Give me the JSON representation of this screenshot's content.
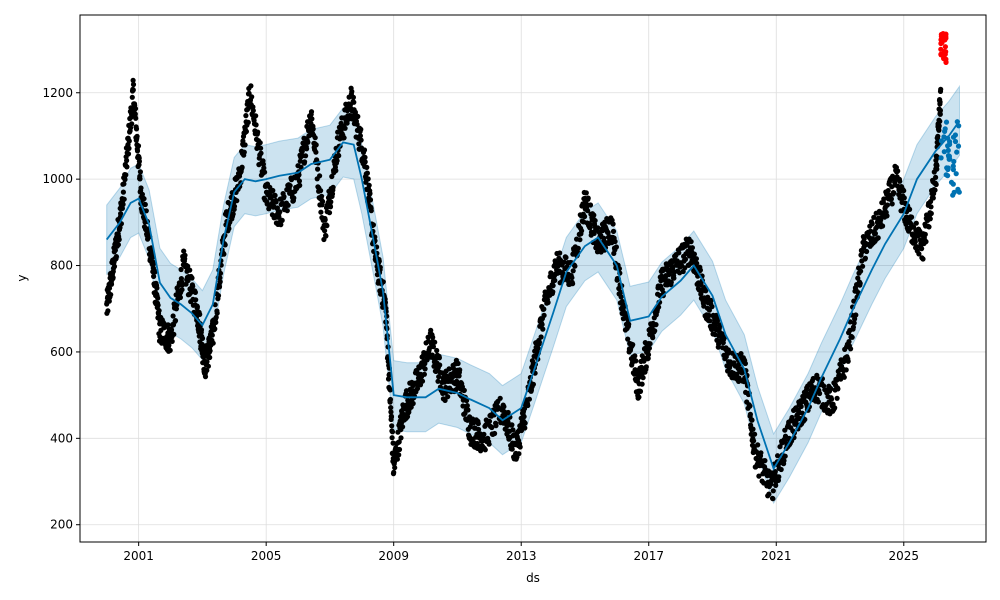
{
  "chart_data": {
    "type": "line",
    "title": "",
    "xlabel": "ds",
    "ylabel": "y",
    "x_ticks": [
      "2001",
      "2005",
      "2009",
      "2013",
      "2017",
      "2021",
      "2025"
    ],
    "y_ticks": [
      200,
      400,
      600,
      800,
      1000,
      1200
    ],
    "xlim": [
      "1999-03-01",
      "2027-08-01"
    ],
    "ylim": [
      160,
      1380
    ],
    "grid": true,
    "legend": "none",
    "colors": {
      "observed": "#000000",
      "forecast": "#0072B2",
      "interval": "#0072B2",
      "holdout": "#ff0000"
    },
    "series": [
      {
        "role": "forecast_yhat",
        "points": [
          [
            "2000-01-01",
            860
          ],
          [
            "2000-06-01",
            900
          ],
          [
            "2000-10-01",
            945
          ],
          [
            "2001-01-01",
            955
          ],
          [
            "2001-05-01",
            895
          ],
          [
            "2001-09-01",
            760
          ],
          [
            "2002-01-01",
            725
          ],
          [
            "2002-05-01",
            710
          ],
          [
            "2002-09-01",
            690
          ],
          [
            "2003-01-01",
            662
          ],
          [
            "2003-05-01",
            710
          ],
          [
            "2003-09-01",
            860
          ],
          [
            "2004-01-01",
            970
          ],
          [
            "2004-05-01",
            1000
          ],
          [
            "2004-09-01",
            995
          ],
          [
            "2005-01-01",
            1000
          ],
          [
            "2005-06-01",
            1008
          ],
          [
            "2006-01-01",
            1015
          ],
          [
            "2006-06-01",
            1035
          ],
          [
            "2007-01-01",
            1045
          ],
          [
            "2007-06-01",
            1085
          ],
          [
            "2007-10-01",
            1080
          ],
          [
            "2008-01-01",
            1000
          ],
          [
            "2008-06-01",
            840
          ],
          [
            "2008-09-01",
            740
          ],
          [
            "2009-01-01",
            500
          ],
          [
            "2009-06-01",
            495
          ],
          [
            "2010-01-01",
            495
          ],
          [
            "2010-06-01",
            515
          ],
          [
            "2011-01-01",
            505
          ],
          [
            "2011-06-01",
            490
          ],
          [
            "2012-01-01",
            470
          ],
          [
            "2012-06-01",
            442
          ],
          [
            "2013-01-01",
            470
          ],
          [
            "2013-06-01",
            560
          ],
          [
            "2014-01-01",
            690
          ],
          [
            "2014-06-01",
            785
          ],
          [
            "2015-01-01",
            845
          ],
          [
            "2015-06-01",
            865
          ],
          [
            "2016-01-01",
            800
          ],
          [
            "2016-06-01",
            672
          ],
          [
            "2017-01-01",
            682
          ],
          [
            "2017-06-01",
            728
          ],
          [
            "2018-01-01",
            765
          ],
          [
            "2018-06-01",
            800
          ],
          [
            "2019-01-01",
            730
          ],
          [
            "2019-06-01",
            640
          ],
          [
            "2020-01-01",
            560
          ],
          [
            "2020-06-01",
            440
          ],
          [
            "2020-12-01",
            330
          ],
          [
            "2021-06-01",
            390
          ],
          [
            "2022-01-01",
            470
          ],
          [
            "2022-06-01",
            540
          ],
          [
            "2023-01-01",
            630
          ],
          [
            "2023-06-01",
            700
          ],
          [
            "2024-01-01",
            790
          ],
          [
            "2024-06-01",
            850
          ],
          [
            "2025-01-01",
            920
          ],
          [
            "2025-06-01",
            1000
          ],
          [
            "2026-01-01",
            1065
          ],
          [
            "2026-06-01",
            1100
          ],
          [
            "2026-10-01",
            1135
          ]
        ]
      },
      {
        "role": "forecast_interval",
        "half_width": 80
      },
      {
        "role": "observed",
        "marker": "dot",
        "anchors": [
          [
            "2000-01-01",
            700
          ],
          [
            "2000-04-01",
            820
          ],
          [
            "2000-07-01",
            950
          ],
          [
            "2000-11-01",
            1200
          ],
          [
            "2001-02-01",
            960
          ],
          [
            "2001-06-01",
            820
          ],
          [
            "2001-09-01",
            650
          ],
          [
            "2002-01-01",
            630
          ],
          [
            "2002-06-01",
            800
          ],
          [
            "2002-11-01",
            700
          ],
          [
            "2003-02-01",
            570
          ],
          [
            "2003-05-01",
            640
          ],
          [
            "2003-10-01",
            900
          ],
          [
            "2004-03-01",
            1000
          ],
          [
            "2004-07-01",
            1200
          ],
          [
            "2005-01-01",
            960
          ],
          [
            "2005-06-01",
            920
          ],
          [
            "2006-01-01",
            1000
          ],
          [
            "2006-06-01",
            1150
          ],
          [
            "2006-11-01",
            880
          ],
          [
            "2007-04-01",
            1080
          ],
          [
            "2007-09-01",
            1180
          ],
          [
            "2008-02-01",
            1050
          ],
          [
            "2008-06-01",
            830
          ],
          [
            "2008-10-01",
            700
          ],
          [
            "2009-01-01",
            330
          ],
          [
            "2009-05-01",
            470
          ],
          [
            "2009-10-01",
            530
          ],
          [
            "2010-03-01",
            620
          ],
          [
            "2010-08-01",
            520
          ],
          [
            "2011-01-01",
            550
          ],
          [
            "2011-06-01",
            420
          ],
          [
            "2011-11-01",
            400
          ],
          [
            "2012-06-01",
            470
          ],
          [
            "2012-11-01",
            370
          ],
          [
            "2013-04-01",
            500
          ],
          [
            "2013-09-01",
            680
          ],
          [
            "2014-02-01",
            800
          ],
          [
            "2014-08-01",
            780
          ],
          [
            "2015-01-01",
            950
          ],
          [
            "2015-06-01",
            850
          ],
          [
            "2015-11-01",
            890
          ],
          [
            "2016-04-01",
            680
          ],
          [
            "2016-09-01",
            520
          ],
          [
            "2017-01-01",
            620
          ],
          [
            "2017-06-01",
            760
          ],
          [
            "2017-11-01",
            800
          ],
          [
            "2018-05-01",
            840
          ],
          [
            "2018-10-01",
            720
          ],
          [
            "2019-03-01",
            650
          ],
          [
            "2019-08-01",
            570
          ],
          [
            "2020-01-01",
            560
          ],
          [
            "2020-05-01",
            370
          ],
          [
            "2020-11-01",
            280
          ],
          [
            "2021-05-01",
            400
          ],
          [
            "2021-11-01",
            470
          ],
          [
            "2022-04-01",
            520
          ],
          [
            "2022-10-01",
            480
          ],
          [
            "2023-04-01",
            600
          ],
          [
            "2023-10-01",
            840
          ],
          [
            "2024-04-01",
            900
          ],
          [
            "2024-10-01",
            1000
          ],
          [
            "2025-03-01",
            900
          ],
          [
            "2025-08-01",
            840
          ],
          [
            "2026-01-01",
            1000
          ],
          [
            "2026-03-01",
            1200
          ]
        ]
      },
      {
        "role": "holdout",
        "marker": "dot",
        "x_range": [
          "2026-03-01",
          "2026-05-01"
        ],
        "y_range": [
          1270,
          1340
        ]
      }
    ]
  }
}
